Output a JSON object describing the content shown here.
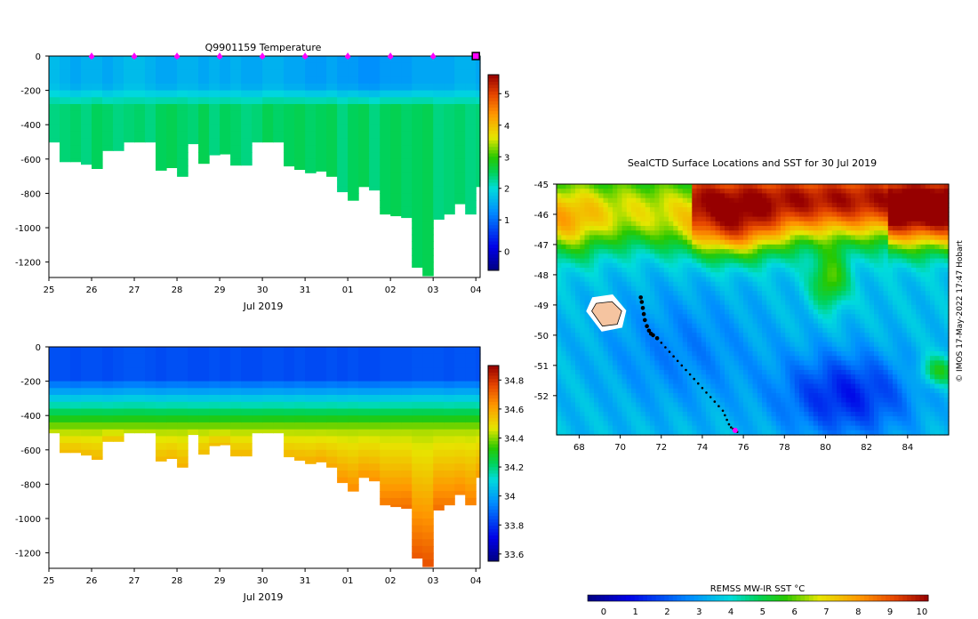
{
  "chart_data": [
    {
      "type": "heatmap",
      "title": "Q9901159  Temperature",
      "xlabel": "Jul 2019",
      "ylabel": "",
      "x_ticks": [
        "25",
        "26",
        "27",
        "28",
        "29",
        "30",
        "31",
        "01",
        "02",
        "03",
        "04"
      ],
      "y_ticks": [
        0,
        -200,
        -400,
        -600,
        -800,
        -1000,
        -1200
      ],
      "xlim": [
        25,
        35.1
      ],
      "ylim": [
        -1290,
        0
      ],
      "colorbar": {
        "ticks": [
          0,
          1,
          2,
          3,
          4,
          5
        ],
        "range": [
          -0.6,
          5.6
        ]
      },
      "surface_markers_x": [
        26,
        27,
        28,
        29,
        30,
        31,
        32,
        33,
        34
      ],
      "end_marker_x": 35,
      "profiles": {
        "x": [
          25,
          25.25,
          25.5,
          25.75,
          26,
          26.25,
          26.5,
          26.75,
          27,
          27.25,
          27.5,
          27.75,
          28,
          28.25,
          28.5,
          28.75,
          29,
          29.25,
          29.5,
          29.75,
          30,
          30.25,
          30.5,
          30.75,
          31,
          31.25,
          31.5,
          31.75,
          32,
          32.25,
          32.5,
          32.75,
          33,
          33.25,
          33.5,
          33.75,
          34,
          34.25,
          34.5,
          34.75,
          35
        ],
        "max_depth": [
          -500,
          -615,
          -615,
          -630,
          -655,
          -550,
          -550,
          -500,
          -500,
          -500,
          -665,
          -650,
          -700,
          -510,
          -625,
          -575,
          -570,
          -635,
          -635,
          -500,
          -500,
          -500,
          -640,
          -660,
          -680,
          -670,
          -700,
          -790,
          -840,
          -760,
          -780,
          -920,
          -930,
          -940,
          -1230,
          -1280,
          -950,
          -920,
          -860,
          -920,
          -760
        ],
        "surface_value": [
          1.7,
          1.6,
          1.5,
          1.6,
          1.6,
          1.5,
          1.6,
          1.7,
          1.7,
          1.6,
          1.5,
          1.5,
          1.6,
          1.6,
          1.5,
          1.6,
          1.5,
          1.6,
          1.5,
          1.5,
          1.6,
          1.6,
          1.5,
          1.5,
          1.4,
          1.4,
          1.5,
          1.4,
          1.4,
          1.3,
          1.3,
          1.4,
          1.4,
          1.4,
          1.5,
          1.5,
          1.5,
          1.5,
          1.6,
          1.6,
          1.5
        ],
        "deep_value": [
          2.4,
          2.4,
          2.4,
          2.4,
          2.5,
          2.4,
          2.4,
          2.4,
          2.4,
          2.4,
          2.5,
          2.5,
          2.5,
          2.4,
          2.5,
          2.4,
          2.5,
          2.4,
          2.4,
          2.4,
          2.5,
          2.5,
          2.5,
          2.5,
          2.5,
          2.5,
          2.5,
          2.4,
          2.5,
          2.5,
          2.4,
          2.5,
          2.5,
          2.5,
          2.5,
          2.5,
          2.4,
          2.4,
          2.4,
          2.4,
          2.4
        ]
      }
    },
    {
      "type": "heatmap",
      "title": "",
      "xlabel": "Jul 2019",
      "ylabel": "",
      "x_ticks": [
        "25",
        "26",
        "27",
        "28",
        "29",
        "30",
        "31",
        "01",
        "02",
        "03",
        "04"
      ],
      "y_ticks": [
        0,
        -200,
        -400,
        -600,
        -800,
        -1000,
        -1200
      ],
      "xlim": [
        25,
        35.1
      ],
      "ylim": [
        -1290,
        0
      ],
      "colorbar": {
        "ticks": [
          33.6,
          33.8,
          34,
          34.2,
          34.4,
          34.6,
          34.8
        ],
        "range": [
          33.55,
          34.9
        ]
      },
      "profiles": {
        "x": [
          25,
          25.25,
          25.5,
          25.75,
          26,
          26.25,
          26.5,
          26.75,
          27,
          27.25,
          27.5,
          27.75,
          28,
          28.25,
          28.5,
          28.75,
          29,
          29.25,
          29.5,
          29.75,
          30,
          30.25,
          30.5,
          30.75,
          31,
          31.25,
          31.5,
          31.75,
          32,
          32.25,
          32.5,
          32.75,
          33,
          33.25,
          33.5,
          33.75,
          34,
          34.25,
          34.5,
          34.75,
          35
        ],
        "max_depth": [
          -500,
          -615,
          -615,
          -630,
          -655,
          -550,
          -550,
          -500,
          -500,
          -500,
          -665,
          -650,
          -700,
          -510,
          -625,
          -575,
          -570,
          -635,
          -635,
          -500,
          -500,
          -500,
          -640,
          -660,
          -680,
          -670,
          -700,
          -790,
          -840,
          -760,
          -780,
          -920,
          -930,
          -940,
          -1230,
          -1280,
          -950,
          -920,
          -860,
          -920,
          -760
        ],
        "surface_value": [
          33.85,
          33.85,
          33.84,
          33.85,
          33.85,
          33.84,
          33.85,
          33.86,
          33.86,
          33.85,
          33.84,
          33.85,
          33.85,
          33.84,
          33.84,
          33.85,
          33.84,
          33.85,
          33.84,
          33.84,
          33.85,
          33.85,
          33.84,
          33.85,
          33.84,
          33.84,
          33.85,
          33.84,
          33.85,
          33.84,
          33.84,
          33.85,
          33.85,
          33.85,
          33.86,
          33.86,
          33.86,
          33.85,
          33.86,
          33.86,
          33.85
        ],
        "deep_value": [
          34.55,
          34.56,
          34.56,
          34.56,
          34.57,
          34.55,
          34.55,
          34.54,
          34.54,
          34.54,
          34.57,
          34.57,
          34.58,
          34.54,
          34.56,
          34.56,
          34.56,
          34.57,
          34.57,
          34.54,
          34.54,
          34.54,
          34.57,
          34.58,
          34.59,
          34.6,
          34.6,
          34.64,
          34.65,
          34.63,
          34.64,
          34.68,
          34.69,
          34.7,
          34.74,
          34.75,
          34.7,
          34.68,
          34.66,
          34.67,
          34.62
        ]
      }
    },
    {
      "type": "heatmap",
      "title": "SealCTD Surface Locations and SST for 30 Jul 2019",
      "xlabel": "",
      "ylabel": "",
      "x_ticks": [
        68,
        70,
        72,
        74,
        76,
        78,
        80,
        82,
        84
      ],
      "y_ticks": [
        -45,
        -46,
        -47,
        -48,
        -49,
        -50,
        -51,
        -52
      ],
      "xlim": [
        66.9,
        86
      ],
      "ylim": [
        -53.3,
        -45
      ],
      "colorbar": {
        "label": "REMSS MW-IR SST °C",
        "ticks": [
          0,
          1,
          2,
          3,
          4,
          5,
          6,
          7,
          8,
          9,
          10
        ],
        "range": [
          -0.5,
          10.2
        ]
      },
      "track": {
        "lon": [
          71.0,
          71.05,
          71.1,
          71.15,
          71.2,
          71.3,
          71.4,
          71.5,
          71.6,
          71.8,
          72.0,
          72.2,
          72.4,
          72.6,
          72.8,
          73.0,
          73.2,
          73.4,
          73.6,
          73.8,
          74.0,
          74.2,
          74.4,
          74.6,
          74.8,
          75.0,
          75.1,
          75.2,
          75.3,
          75.4,
          75.5,
          75.6,
          75.7
        ],
        "lat": [
          -48.75,
          -48.9,
          -49.1,
          -49.3,
          -49.5,
          -49.7,
          -49.85,
          -49.95,
          -50.0,
          -50.1,
          -50.25,
          -50.4,
          -50.55,
          -50.7,
          -50.85,
          -51.0,
          -51.15,
          -51.3,
          -51.45,
          -51.6,
          -51.75,
          -51.9,
          -52.05,
          -52.2,
          -52.35,
          -52.5,
          -52.65,
          -52.8,
          -52.95,
          -53.05,
          -53.1,
          -53.15,
          -53.2
        ]
      },
      "highlight_lon": 75.6,
      "highlight_lat": -53.15,
      "island_lon": [
        68.7,
        69.6,
        70.2
      ],
      "island_lat": [
        -48.8,
        -49.2,
        -49.7
      ],
      "credit": "© IMOS 17-May-2022 17:47 Hobart"
    }
  ]
}
